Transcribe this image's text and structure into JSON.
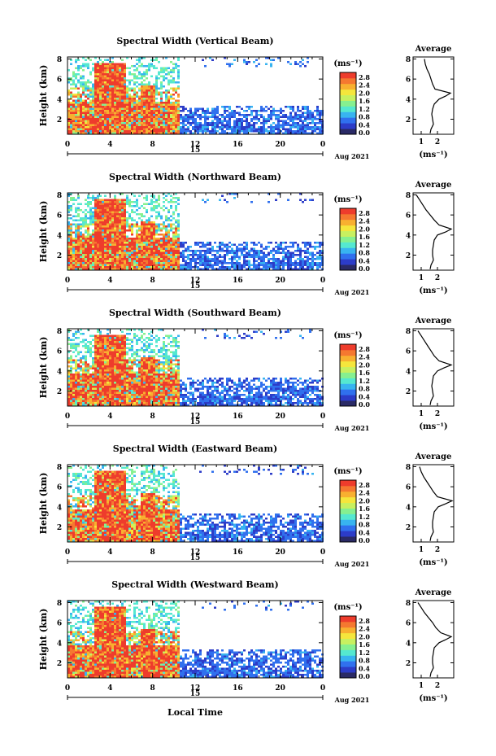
{
  "x_axis_label": "Local Time",
  "colorbar_unit": "(ms⁻¹)",
  "colorbar_ticks": [
    "2.8",
    "2.4",
    "2.0",
    "1.6",
    "1.2",
    "0.8",
    "0.4",
    "0.0"
  ],
  "colorbar_colors": [
    "#2a2a66",
    "#2c3cc8",
    "#3070ee",
    "#38b4f0",
    "#55e8d0",
    "#86f090",
    "#c8f060",
    "#f5e63c",
    "#f8b030",
    "#f57830",
    "#ee3c2c"
  ],
  "profile_title": "Average",
  "profile_unit": "(ms⁻¹)",
  "date_label": "Aug 2021",
  "chart_data": [
    {
      "type": "heatmap",
      "title": "Spectral Width (Vertical Beam)",
      "ylabel": "Height (km)",
      "xlabel": "",
      "x_ticks": [
        "0",
        "4",
        "8",
        "12",
        "16",
        "20",
        "0"
      ],
      "date_tick": "15",
      "y_ticks": [
        "8",
        "6",
        "4",
        "2"
      ],
      "ylim": [
        0.5,
        8.2
      ],
      "profile": {
        "xticks": [
          "1",
          "2"
        ],
        "xlim": [
          0.5,
          3
        ],
        "heights": [
          8,
          7.5,
          7,
          6.5,
          6,
          5.5,
          5,
          4.6,
          4.3,
          4,
          3.5,
          3,
          2.5,
          2,
          1.5,
          1,
          0.6
        ],
        "values": [
          1.2,
          1.25,
          1.35,
          1.5,
          1.6,
          1.7,
          1.85,
          2.8,
          2.5,
          2.1,
          1.8,
          1.7,
          1.65,
          1.7,
          1.75,
          1.6,
          1.55
        ]
      }
    },
    {
      "type": "heatmap",
      "title": "Spectral Width (Northward Beam)",
      "ylabel": "Height (km)",
      "xlabel": "",
      "x_ticks": [
        "0",
        "4",
        "8",
        "12",
        "16",
        "20",
        "0"
      ],
      "date_tick": "15",
      "y_ticks": [
        "8",
        "6",
        "4",
        "2"
      ],
      "ylim": [
        0.5,
        8.2
      ],
      "profile": {
        "xticks": [
          "1",
          "2"
        ],
        "xlim": [
          0.5,
          3
        ],
        "heights": [
          8,
          7.5,
          7,
          6.5,
          6,
          5.5,
          5,
          4.6,
          4.3,
          4,
          3.5,
          3,
          2.5,
          2,
          1.5,
          1,
          0.6
        ],
        "values": [
          0.7,
          0.9,
          1.1,
          1.3,
          1.55,
          1.8,
          2.1,
          2.85,
          2.5,
          2.0,
          1.8,
          1.75,
          1.7,
          1.7,
          1.75,
          1.6,
          1.55
        ]
      }
    },
    {
      "type": "heatmap",
      "title": "Spectral Width (Southward Beam)",
      "ylabel": "Height (km)",
      "xlabel": "",
      "x_ticks": [
        "0",
        "4",
        "8",
        "12",
        "16",
        "20",
        "0"
      ],
      "date_tick": "15",
      "y_ticks": [
        "8",
        "6",
        "4",
        "2"
      ],
      "ylim": [
        0.5,
        8.2
      ],
      "profile": {
        "xticks": [
          "1",
          "2"
        ],
        "xlim": [
          0.5,
          3
        ],
        "heights": [
          8,
          7.5,
          7,
          6.5,
          6,
          5.5,
          5,
          4.6,
          4.3,
          4,
          3.5,
          3,
          2.5,
          2,
          1.5,
          1,
          0.6
        ],
        "values": [
          0.8,
          1.0,
          1.2,
          1.4,
          1.6,
          1.8,
          2.1,
          2.85,
          2.4,
          2.0,
          1.75,
          1.7,
          1.65,
          1.7,
          1.75,
          1.6,
          1.55
        ]
      }
    },
    {
      "type": "heatmap",
      "title": "Spectral Width (Eastward Beam)",
      "ylabel": "Height (km)",
      "xlabel": "",
      "x_ticks": [
        "0",
        "4",
        "8",
        "12",
        "16",
        "20",
        "0"
      ],
      "date_tick": "15",
      "y_ticks": [
        "8",
        "6",
        "4",
        "2"
      ],
      "ylim": [
        0.5,
        8.2
      ],
      "profile": {
        "xticks": [
          "1",
          "2"
        ],
        "xlim": [
          0.5,
          3
        ],
        "heights": [
          8,
          7.5,
          7,
          6.5,
          6,
          5.5,
          5,
          4.6,
          4.3,
          4,
          3.5,
          3,
          2.5,
          2,
          1.5,
          1,
          0.6
        ],
        "values": [
          0.9,
          1.0,
          1.15,
          1.35,
          1.55,
          1.75,
          2.0,
          2.9,
          2.5,
          2.05,
          1.8,
          1.75,
          1.7,
          1.7,
          1.75,
          1.6,
          1.55
        ]
      }
    },
    {
      "type": "heatmap",
      "title": "Spectral Width (Westward Beam)",
      "ylabel": "Height (km)",
      "xlabel": "Local Time",
      "x_ticks": [
        "0",
        "4",
        "8",
        "12",
        "16",
        "20",
        "0"
      ],
      "date_tick": "15",
      "y_ticks": [
        "8",
        "6",
        "4",
        "2"
      ],
      "ylim": [
        0.5,
        8.2
      ],
      "profile": {
        "xticks": [
          "1",
          "2"
        ],
        "xlim": [
          0.5,
          3
        ],
        "heights": [
          8,
          7.5,
          7,
          6.5,
          6,
          5.5,
          5,
          4.6,
          4.3,
          4,
          3.5,
          3,
          2.5,
          2,
          1.5,
          1,
          0.6
        ],
        "values": [
          0.8,
          1.0,
          1.2,
          1.45,
          1.7,
          1.9,
          2.2,
          2.85,
          2.5,
          2.1,
          1.8,
          1.75,
          1.7,
          1.7,
          1.75,
          1.6,
          1.55
        ]
      }
    }
  ]
}
